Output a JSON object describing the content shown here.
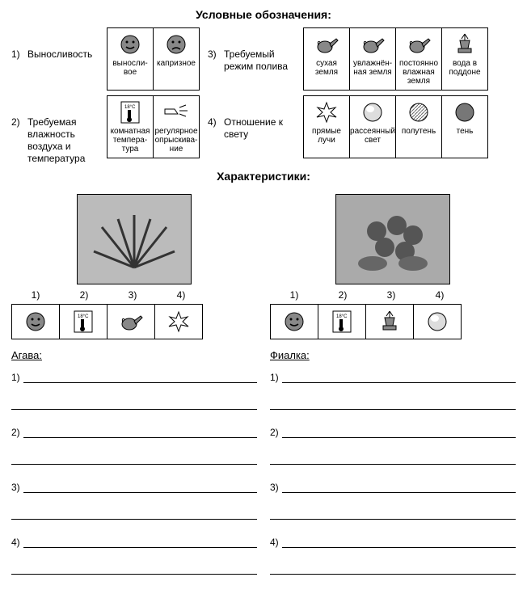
{
  "title1": "Условные обозначения:",
  "title2": "Характеристики:",
  "legend": [
    {
      "num": "1)",
      "label": "Выносливость",
      "cells": [
        {
          "icon": "smile",
          "cap": "выносли-вое"
        },
        {
          "icon": "sad",
          "cap": "капризное"
        }
      ]
    },
    {
      "num": "3)",
      "label": "Требуемый режим полива",
      "cells": [
        {
          "icon": "can1",
          "cap": "сухая земля"
        },
        {
          "icon": "can2",
          "cap": "увлажнён-ная земля"
        },
        {
          "icon": "can3",
          "cap": "постоянно влажная земля"
        },
        {
          "icon": "pot",
          "cap": "вода в поддоне"
        }
      ]
    },
    {
      "num": "2)",
      "label": "Требуемая влажность воздуха и температура",
      "cells": [
        {
          "icon": "therm",
          "cap": "комнатная темпера-тура"
        },
        {
          "icon": "spray",
          "cap": "регулярное опрыскива-ние"
        }
      ]
    },
    {
      "num": "4)",
      "label": "Отношение к свету",
      "cells": [
        {
          "icon": "sun",
          "cap": "прямые лучи"
        },
        {
          "icon": "ball1",
          "cap": "рассеянный свет"
        },
        {
          "icon": "ball2",
          "cap": "полутень"
        },
        {
          "icon": "ball3",
          "cap": "тень"
        }
      ]
    }
  ],
  "plants": [
    {
      "name": "Агава:",
      "nums": [
        "1)",
        "2)",
        "3)",
        "4)"
      ],
      "icons": [
        "smile",
        "therm",
        "can1",
        "sun"
      ]
    },
    {
      "name": "Фиалка:",
      "nums": [
        "1)",
        "2)",
        "3)",
        "4)"
      ],
      "icons": [
        "smile",
        "therm",
        "pot",
        "ball1"
      ]
    }
  ],
  "lines": [
    "1)",
    "2)",
    "3)",
    "4)"
  ]
}
